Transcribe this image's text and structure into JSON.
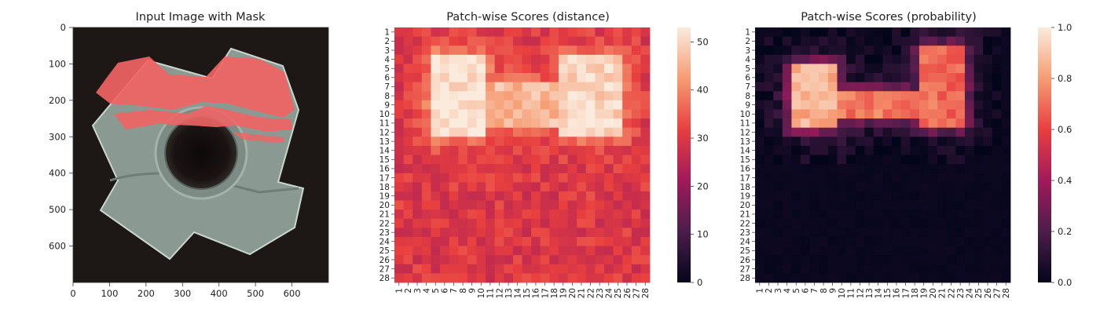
{
  "panels": [
    {
      "title": "Input Image with Mask",
      "xticks": [
        "0",
        "100",
        "200",
        "300",
        "400",
        "500",
        "600"
      ],
      "yticks": [
        "0",
        "100",
        "200",
        "300",
        "400",
        "500",
        "600"
      ]
    },
    {
      "title": "Patch-wise Scores (distance)",
      "colorbar_ticks": [
        "0",
        "10",
        "20",
        "30",
        "40",
        "50"
      ]
    },
    {
      "title": "Patch-wise Scores (probability)",
      "colorbar_ticks": [
        "0.0",
        "0.2",
        "0.4",
        "0.6",
        "0.8",
        "1.0"
      ]
    }
  ],
  "chart_data": [
    {
      "type": "image",
      "title": "Input Image with Mask",
      "xlim": [
        0,
        700
      ],
      "ylim": [
        700,
        0
      ],
      "image_size": [
        700,
        700
      ],
      "description_colors": {
        "background": "#1d1715",
        "object": "#8a9a92",
        "mask": "#f06464"
      }
    },
    {
      "type": "heatmap",
      "title": "Patch-wise Scores (distance)",
      "grid": [
        28,
        28
      ],
      "x_labels": [
        "1",
        "2",
        "3",
        "4",
        "5",
        "6",
        "7",
        "8",
        "9",
        "10",
        "11",
        "12",
        "13",
        "14",
        "15",
        "16",
        "17",
        "18",
        "19",
        "20",
        "21",
        "22",
        "23",
        "24",
        "25",
        "26",
        "27",
        "28"
      ],
      "y_labels": [
        "1",
        "2",
        "3",
        "4",
        "5",
        "6",
        "7",
        "8",
        "9",
        "10",
        "11",
        "12",
        "13",
        "14",
        "15",
        "16",
        "17",
        "18",
        "19",
        "20",
        "21",
        "22",
        "23",
        "24",
        "25",
        "26",
        "27",
        "28"
      ],
      "value_range": [
        0,
        53
      ],
      "colormap": "rocket",
      "bright_regions": [
        {
          "rows": [
            4,
            12
          ],
          "cols": [
            5,
            10
          ],
          "peak": 52
        },
        {
          "rows": [
            4,
            12
          ],
          "cols": [
            19,
            25
          ],
          "peak": 50
        },
        {
          "rows": [
            7,
            11
          ],
          "cols": [
            11,
            19
          ],
          "peak": 46
        }
      ],
      "background_level": 30
    },
    {
      "type": "heatmap",
      "title": "Patch-wise Scores (probability)",
      "grid": [
        28,
        28
      ],
      "x_labels": [
        "1",
        "2",
        "3",
        "4",
        "5",
        "6",
        "7",
        "8",
        "9",
        "10",
        "11",
        "12",
        "13",
        "14",
        "15",
        "16",
        "17",
        "18",
        "19",
        "20",
        "21",
        "22",
        "23",
        "24",
        "25",
        "26",
        "27",
        "28"
      ],
      "y_labels": [
        "1",
        "2",
        "3",
        "4",
        "5",
        "6",
        "7",
        "8",
        "9",
        "10",
        "11",
        "12",
        "13",
        "14",
        "15",
        "16",
        "17",
        "18",
        "19",
        "20",
        "21",
        "22",
        "23",
        "24",
        "25",
        "26",
        "27",
        "28"
      ],
      "value_range": [
        0.0,
        1.0
      ],
      "colormap": "rocket",
      "bright_regions": [
        {
          "rows": [
            5,
            11
          ],
          "cols": [
            5,
            9
          ],
          "peak": 0.85
        },
        {
          "rows": [
            8,
            10
          ],
          "cols": [
            9,
            20
          ],
          "peak": 0.72
        },
        {
          "rows": [
            3,
            11
          ],
          "cols": [
            19,
            23
          ],
          "peak": 0.68
        }
      ],
      "background_level": 0.02
    }
  ]
}
